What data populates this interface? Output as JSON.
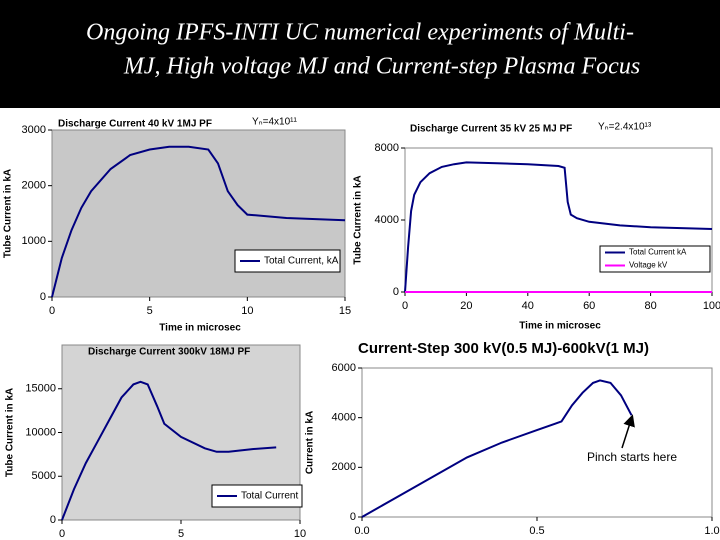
{
  "title_lines": [
    "Ongoing IPFS-INTI UC numerical experiments of Multi-",
    "MJ, High voltage MJ and Current-step Plasma Focus"
  ],
  "chart_data": [
    {
      "type": "line",
      "title": "Discharge Current 40 kV 1MJ PF",
      "annotation": "Yₙ=4x10¹¹",
      "x_label": "Time in microsec",
      "y_label": "Tube Current in kA",
      "xlim": [
        0,
        15
      ],
      "ylim": [
        0,
        3000
      ],
      "xticks": [
        0,
        5,
        10,
        15
      ],
      "yticks": [
        0,
        1000,
        2000,
        3000
      ],
      "x": [
        0,
        0.5,
        1,
        1.5,
        2,
        3,
        4,
        5,
        6,
        7,
        8,
        8.5,
        9,
        9.5,
        10,
        12,
        15
      ],
      "series": [
        {
          "name": "Total Current, kA",
          "color": "#000080",
          "values": [
            0,
            700,
            1200,
            1600,
            1900,
            2300,
            2550,
            2650,
            2700,
            2700,
            2650,
            2400,
            1900,
            1650,
            1480,
            1420,
            1380
          ]
        }
      ]
    },
    {
      "type": "line",
      "title": "Discharge Current 35 kV 25 MJ PF",
      "annotation": "Yₙ=2.4x10¹³",
      "x_label": "Time in microsec",
      "y_label": "Tube Current in kA",
      "xlim": [
        0,
        100
      ],
      "ylim": [
        0,
        8000
      ],
      "xticks": [
        0,
        20,
        40,
        60,
        80,
        100
      ],
      "yticks": [
        0,
        4000,
        8000
      ],
      "x": [
        0,
        1,
        2,
        3,
        5,
        8,
        12,
        16,
        20,
        30,
        40,
        50,
        52,
        53,
        54,
        56,
        60,
        70,
        80,
        90,
        100
      ],
      "series": [
        {
          "name": "Total Current kA",
          "color": "#000080",
          "values": [
            0,
            2500,
            4500,
            5400,
            6100,
            6600,
            6950,
            7100,
            7200,
            7150,
            7100,
            7000,
            6900,
            5000,
            4300,
            4100,
            3900,
            3700,
            3600,
            3550,
            3500
          ]
        },
        {
          "name": "Voltage kV",
          "color": "#ff00ff",
          "values": [
            0,
            0,
            0,
            0,
            0,
            0,
            0,
            0,
            0,
            0,
            0,
            0,
            0,
            0,
            0,
            0,
            0,
            0,
            0,
            0,
            0
          ]
        }
      ]
    },
    {
      "type": "line",
      "title": "Discharge Current 300kV 18MJ PF",
      "x_label": null,
      "y_label": "Tube Current in kA",
      "xlim": [
        0,
        10
      ],
      "ylim": [
        0,
        20000
      ],
      "xticks": [
        0,
        5,
        10
      ],
      "yticks": [
        0,
        5000,
        10000,
        15000
      ],
      "x": [
        0,
        0.5,
        1,
        1.5,
        2,
        2.5,
        3,
        3.3,
        3.6,
        4,
        4.3,
        5,
        6,
        6.5,
        7,
        8,
        9
      ],
      "series": [
        {
          "name": "Total Current",
          "color": "#000080",
          "values": [
            0,
            3500,
            6500,
            9000,
            11500,
            14000,
            15500,
            15800,
            15500,
            13000,
            11000,
            9500,
            8200,
            7800,
            7800,
            8100,
            8300
          ]
        }
      ]
    },
    {
      "type": "line",
      "title": "Current-Step 300 kV(0.5 MJ)-600kV(1 MJ)",
      "annotation": "Pinch starts here",
      "x_label": null,
      "y_label": "Current in kA",
      "xlim": [
        0,
        1
      ],
      "ylim": [
        0,
        6000
      ],
      "xticks": [
        {
          "value": 0,
          "label": "0.0"
        },
        {
          "value": 0.5,
          "label": "0.5"
        },
        {
          "value": 1,
          "label": "1.0"
        }
      ],
      "yticks": [
        0,
        2000,
        4000,
        6000
      ],
      "x": [
        0,
        0.1,
        0.2,
        0.3,
        0.4,
        0.5,
        0.55,
        0.57,
        0.6,
        0.63,
        0.66,
        0.68,
        0.71,
        0.74,
        0.77
      ],
      "series": [
        {
          "color": "#000080",
          "values": [
            0,
            800,
            1600,
            2400,
            3000,
            3500,
            3750,
            3850,
            4500,
            5000,
            5400,
            5500,
            5400,
            4900,
            4100
          ]
        }
      ]
    }
  ]
}
